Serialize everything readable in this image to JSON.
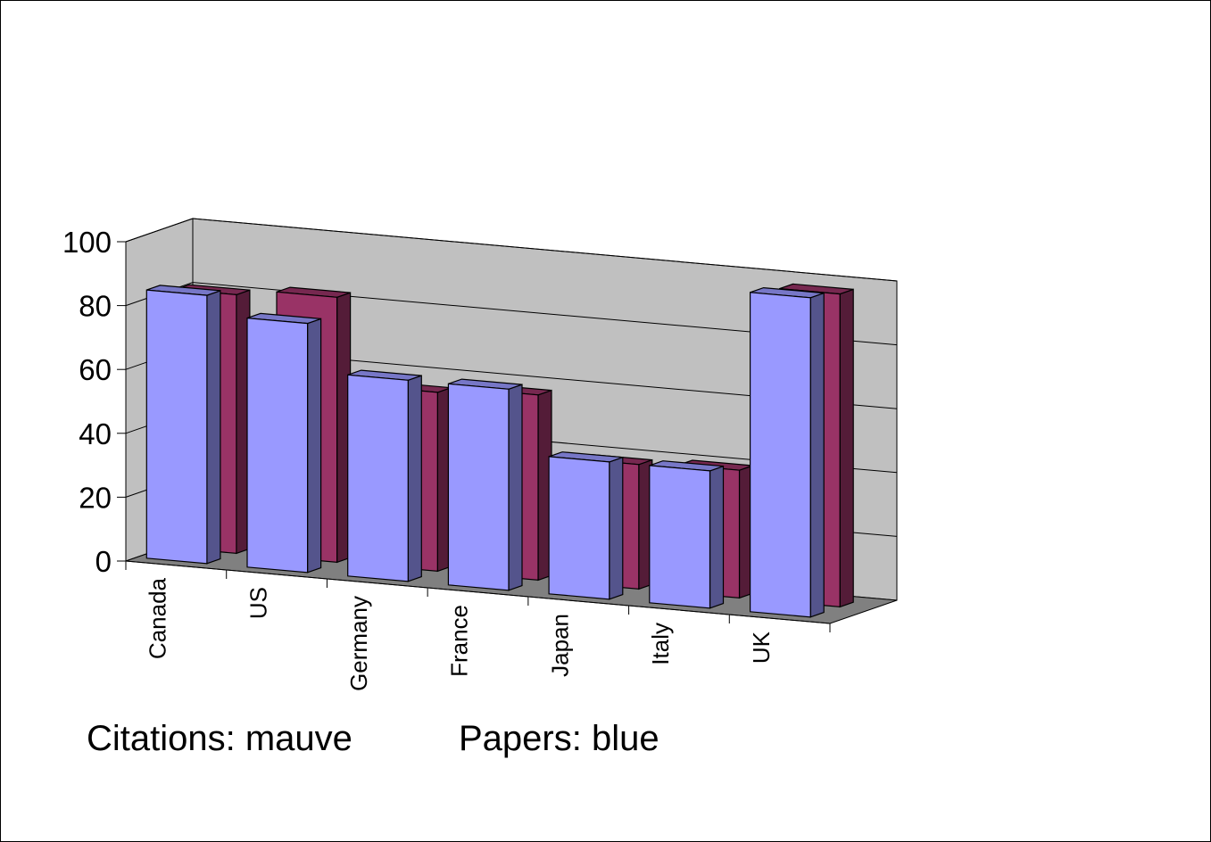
{
  "chart_data": {
    "type": "bar",
    "style": "3d-clustered-column",
    "categories": [
      "Canada",
      "US",
      "Germany",
      "France",
      "Japan",
      "Italy",
      "UK"
    ],
    "series": [
      {
        "name": "Papers",
        "color": "#9999ff",
        "values": [
          84,
          78,
          63,
          63,
          43,
          43,
          100
        ]
      },
      {
        "name": "Citations",
        "color": "#993366",
        "values": [
          81,
          83,
          56,
          58,
          39,
          40,
          98
        ]
      }
    ],
    "ylim": [
      0,
      100
    ],
    "yticks": [
      "0",
      "20",
      "40",
      "60",
      "80",
      "100"
    ],
    "grid": true,
    "title": "",
    "xlabel": "",
    "ylabel": ""
  },
  "captions": {
    "citations": "Citations: mauve",
    "papers": "Papers: blue"
  }
}
